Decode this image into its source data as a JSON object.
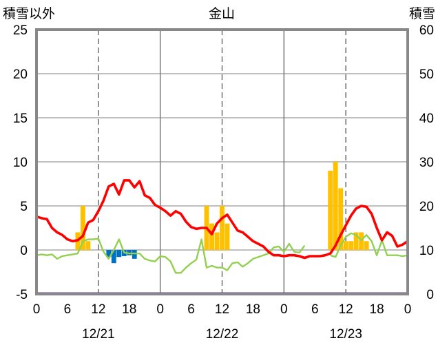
{
  "chart_data": {
    "type": "bar+line",
    "title": "金山",
    "ylabel_left": "積雪以外",
    "ylabel_right": "積雪",
    "ylim_left": [
      -5,
      25
    ],
    "ylim_right": [
      0,
      60
    ],
    "yticks_left": [
      "-5",
      "0",
      "5",
      "10",
      "15",
      "20",
      "25"
    ],
    "yticks_right": [
      "0",
      "10",
      "20",
      "30",
      "40",
      "50",
      "60"
    ],
    "x_range_hours": [
      0,
      72
    ],
    "xticks": [
      "0",
      "6",
      "12",
      "18",
      "0",
      "6",
      "12",
      "18",
      "0",
      "6",
      "12",
      "18",
      "0"
    ],
    "dates": [
      "12/21",
      "12/22",
      "12/23"
    ],
    "grid": "dashed vertical at 12h, solid vertical at day boundaries",
    "colors": {
      "temperature": "#ff0000",
      "other_line": "#92d050",
      "snowfall_bar": "#ffc000",
      "negative_bar": "#0070c0",
      "snow_depth": "#7030a0"
    },
    "bars_positive": [
      {
        "h": 8,
        "v": 2
      },
      {
        "h": 9,
        "v": 5
      },
      {
        "h": 10,
        "v": 1
      },
      {
        "h": 33,
        "v": 5
      },
      {
        "h": 34,
        "v": 3
      },
      {
        "h": 35,
        "v": 2
      },
      {
        "h": 36,
        "v": 5
      },
      {
        "h": 37,
        "v": 3
      },
      {
        "h": 57,
        "v": 9
      },
      {
        "h": 58,
        "v": 10
      },
      {
        "h": 59,
        "v": 7
      },
      {
        "h": 60,
        "v": 1
      },
      {
        "h": 61,
        "v": 1
      },
      {
        "h": 62,
        "v": 2
      },
      {
        "h": 63,
        "v": 2
      },
      {
        "h": 64,
        "v": 1
      }
    ],
    "bars_negative": [
      {
        "h": 14,
        "v": -0.8
      },
      {
        "h": 15,
        "v": -1.5
      },
      {
        "h": 16,
        "v": -0.8
      },
      {
        "h": 17,
        "v": -0.7
      },
      {
        "h": 18,
        "v": -0.6
      },
      {
        "h": 19,
        "v": -1.0
      }
    ],
    "temperature": [
      3.8,
      3.6,
      3.5,
      2.5,
      2.0,
      1.7,
      1.2,
      1.0,
      1.1,
      1.6,
      3.1,
      3.4,
      4.4,
      5.6,
      7.2,
      7.5,
      6.3,
      7.9,
      7.9,
      7.1,
      7.8,
      6.2,
      5.9,
      5.1,
      4.8,
      4.4,
      3.9,
      4.4,
      4.1,
      3.2,
      2.6,
      2.4,
      2.5,
      2.5,
      1.8,
      3.0,
      3.6,
      4.0,
      3.1,
      2.2,
      2.0,
      1.5,
      1.0,
      0.7,
      0.4,
      -0.2,
      -0.6,
      -0.6,
      -0.7,
      -0.6,
      -0.6,
      -0.7,
      -0.9,
      -0.7,
      -0.7,
      -0.7,
      -0.6,
      -0.4,
      0.5,
      1.7,
      2.8,
      3.9,
      4.7,
      5.0,
      4.9,
      4.1,
      2.5,
      1.1,
      2.0,
      1.6,
      0.4,
      0.6,
      1.0
    ],
    "other_line": [
      -0.6,
      -0.5,
      -0.6,
      -0.5,
      -1.0,
      -0.7,
      -0.6,
      -0.5,
      -0.4,
      1.0,
      1.2,
      1.2,
      1.3,
      -0.2,
      -1.0,
      0.0,
      1.2,
      -0.3,
      -0.4,
      -0.4,
      -0.4,
      -1.0,
      -1.2,
      -1.3,
      -0.7,
      -0.8,
      -1.3,
      -2.6,
      -2.6,
      -2.0,
      -1.5,
      -1.1,
      1.2,
      -2.0,
      -1.8,
      -2.0,
      -2.0,
      -2.3,
      -1.5,
      -1.4,
      -1.9,
      -1.5,
      -1.0,
      -0.8,
      -0.6,
      -0.4,
      0.3,
      0.4,
      -0.2,
      0.7,
      -0.2,
      -0.3,
      0.5,
      null,
      null,
      null,
      null,
      -0.6,
      -0.8,
      0.5,
      1.5,
      1.9,
      1.7,
      1.1,
      1.7,
      1.0,
      -0.6,
      1.1,
      -0.6,
      -0.6,
      -0.6,
      -0.7,
      -0.6
    ],
    "snow_depth_right": 0
  }
}
